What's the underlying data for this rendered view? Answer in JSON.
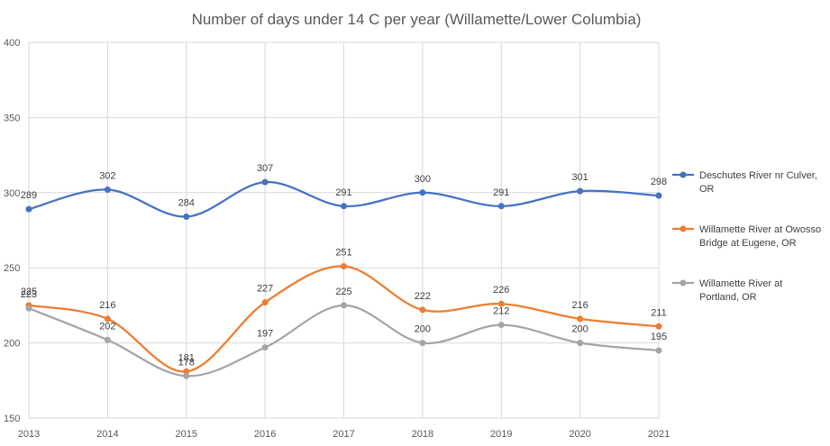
{
  "chart_data": {
    "type": "line",
    "title": "Number of days under 14 C per year (Willamette/Lower Columbia)",
    "xlabel": "",
    "ylabel": "",
    "x": [
      "2013",
      "2014",
      "2015",
      "2016",
      "2017",
      "2018",
      "2019",
      "2020",
      "2021"
    ],
    "ylim": [
      150,
      400
    ],
    "yticks": [
      150,
      200,
      250,
      300,
      350,
      400
    ],
    "grid": true,
    "smooth": true,
    "legend_position": "right",
    "series": [
      {
        "name": "Deschutes River nr Culver, OR",
        "legend_lines": [
          "Deschutes River nr Culver,",
          "OR"
        ],
        "color": "#4472c4",
        "values": [
          289,
          302,
          284,
          307,
          291,
          300,
          291,
          301,
          298
        ]
      },
      {
        "name": "Willamette River at Owosso Bridge at Eugene, OR",
        "legend_lines": [
          "Willamette River at Owosso",
          "Bridge at Eugene, OR"
        ],
        "color": "#ed7d31",
        "values": [
          225,
          216,
          181,
          227,
          251,
          222,
          226,
          216,
          211
        ]
      },
      {
        "name": "Willamette River at Portland, OR",
        "legend_lines": [
          "Willamette River at",
          "Portland, OR"
        ],
        "color": "#a5a5a5",
        "values": [
          223,
          202,
          178,
          197,
          225,
          200,
          212,
          200,
          195
        ]
      }
    ]
  }
}
